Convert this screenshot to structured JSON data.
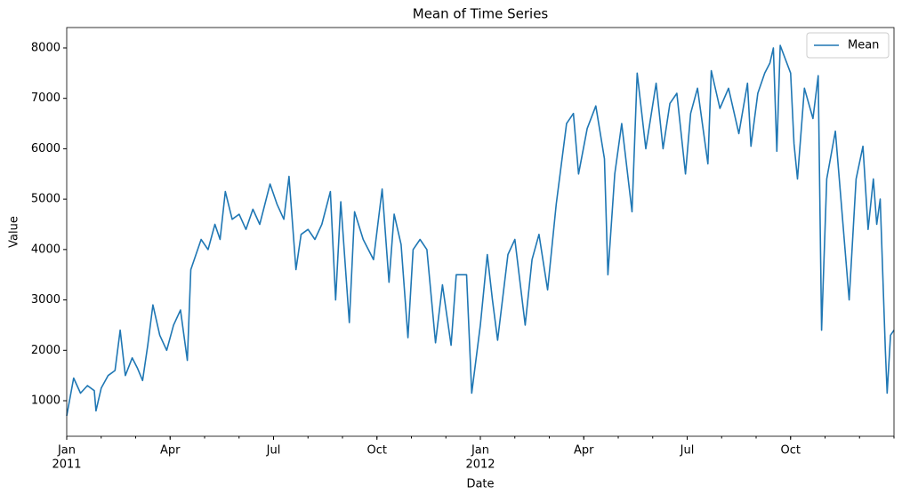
{
  "chart_data": {
    "type": "line",
    "title": "Mean of Time Series",
    "xlabel": "Date",
    "ylabel": "Value",
    "xlim": [
      0,
      24
    ],
    "xticks": [
      {
        "value": 0,
        "label": "Jan"
      },
      {
        "value": 3,
        "label": "Apr"
      },
      {
        "value": 6,
        "label": "Jul"
      },
      {
        "value": 9,
        "label": "Oct"
      },
      {
        "value": 12,
        "label": "Jan"
      },
      {
        "value": 15,
        "label": "Apr"
      },
      {
        "value": 18,
        "label": "Jul"
      },
      {
        "value": 21,
        "label": "Oct"
      }
    ],
    "x_year_labels": [
      {
        "value": 0,
        "label": "2011"
      },
      {
        "value": 12,
        "label": "2012"
      }
    ],
    "ylim": [
      295,
      8405
    ],
    "yticks": [
      1000,
      2000,
      3000,
      4000,
      5000,
      6000,
      7000,
      8000
    ],
    "legend": "upper right",
    "x": [
      0,
      0.2,
      0.4,
      0.6,
      0.8,
      0.85,
      1.0,
      1.2,
      1.4,
      1.55,
      1.7,
      1.9,
      2.05,
      2.2,
      2.35,
      2.5,
      2.7,
      2.9,
      3.1,
      3.3,
      3.5,
      3.6,
      3.75,
      3.9,
      4.1,
      4.3,
      4.45,
      4.6,
      4.8,
      5.0,
      5.2,
      5.4,
      5.6,
      5.9,
      6.1,
      6.3,
      6.45,
      6.65,
      6.8,
      7.0,
      7.2,
      7.4,
      7.65,
      7.8,
      7.95,
      8.2,
      8.35,
      8.6,
      8.9,
      9.15,
      9.35,
      9.5,
      9.7,
      9.9,
      10.05,
      10.25,
      10.45,
      10.7,
      10.9,
      11.15,
      11.3,
      11.6,
      11.75,
      12.0,
      12.2,
      12.35,
      12.5,
      12.8,
      13.0,
      13.3,
      13.5,
      13.7,
      13.95,
      14.2,
      14.5,
      14.7,
      14.85,
      15.1,
      15.35,
      15.6,
      15.7,
      15.9,
      16.1,
      16.4,
      16.55,
      16.8,
      17.1,
      17.3,
      17.5,
      17.7,
      17.95,
      18.1,
      18.3,
      18.6,
      18.7,
      18.95,
      19.2,
      19.5,
      19.75,
      19.85,
      20.05,
      20.25,
      20.4,
      20.5,
      20.6,
      20.7,
      21.0,
      21.1,
      21.2,
      21.4,
      21.65,
      21.8,
      21.9,
      22.05,
      22.3,
      22.45,
      22.7,
      22.9,
      23.1,
      23.25,
      23.4,
      23.5,
      23.6,
      23.75,
      23.8,
      23.9,
      24.0
    ],
    "series": [
      {
        "name": "Mean",
        "color": "#1f77b4",
        "values": [
          700,
          1450,
          1150,
          1300,
          1200,
          800,
          1250,
          1500,
          1600,
          2400,
          1500,
          1850,
          1650,
          1400,
          2100,
          2900,
          2300,
          2000,
          2500,
          2800,
          1800,
          3600,
          3900,
          4200,
          4000,
          4500,
          4200,
          5150,
          4600,
          4700,
          4400,
          4800,
          4500,
          5300,
          4900,
          4600,
          5450,
          3600,
          4300,
          4400,
          4200,
          4500,
          5150,
          3000,
          4950,
          2550,
          4750,
          4200,
          3800,
          5200,
          3350,
          4700,
          4100,
          2250,
          4000,
          4200,
          4000,
          2150,
          3300,
          2100,
          3500,
          3500,
          1150,
          2500,
          3900,
          3000,
          2200,
          3900,
          4200,
          2500,
          3800,
          4300,
          3200,
          4900,
          6500,
          6700,
          5500,
          6400,
          6850,
          5800,
          3500,
          5500,
          6500,
          4750,
          7500,
          6000,
          7300,
          6000,
          6900,
          7100,
          5500,
          6700,
          7200,
          5700,
          7550,
          6800,
          7200,
          6300,
          7300,
          6050,
          7100,
          7500,
          7700,
          8000,
          5950,
          8050,
          7500,
          6100,
          5400,
          7200,
          6600,
          7450,
          2400,
          5400,
          6350,
          5100,
          3000,
          5400,
          6050,
          4400,
          5400,
          4500,
          5000,
          2000,
          1150,
          2300,
          2400
        ]
      }
    ]
  }
}
